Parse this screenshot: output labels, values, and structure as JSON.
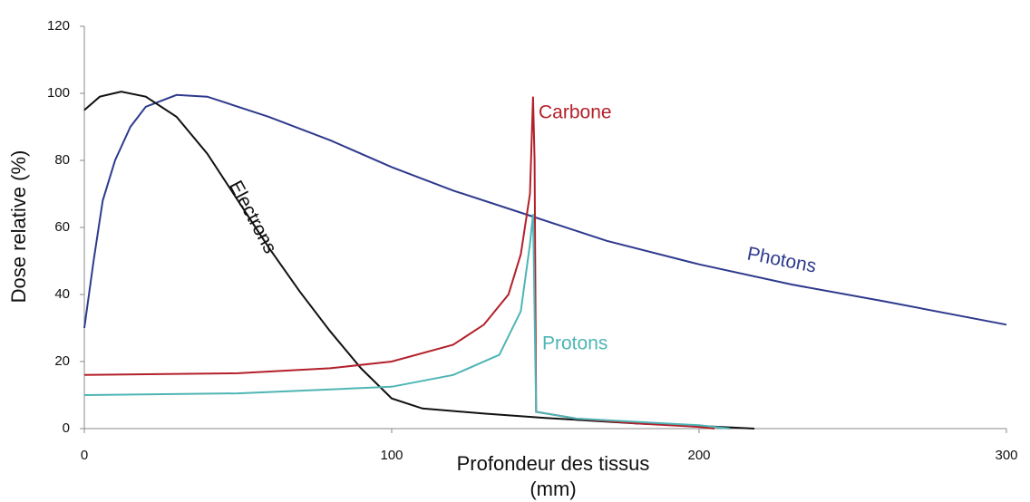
{
  "chart_data": {
    "type": "line",
    "xlabel": "Profondeur des tissus (mm)",
    "ylabel": "Dose relative (%)",
    "xlim": [
      0,
      300
    ],
    "xticks": [
      0,
      100,
      200,
      300
    ],
    "ylim": [
      0,
      120
    ],
    "yticks": [
      0,
      20,
      40,
      60,
      80,
      100,
      120
    ],
    "grid": false,
    "series": [
      {
        "name": "Photons",
        "color": "#2e3a8c",
        "x": [
          0,
          3,
          6,
          10,
          15,
          20,
          30,
          40,
          60,
          80,
          100,
          120,
          145,
          170,
          200,
          230,
          260,
          300
        ],
        "values": [
          30,
          50,
          68,
          80,
          90,
          96,
          99.5,
          99,
          93,
          86,
          78,
          71,
          63.5,
          56,
          49,
          43,
          38,
          31
        ]
      },
      {
        "name": "Electrons",
        "color": "#111111",
        "x": [
          0,
          5,
          12,
          20,
          30,
          40,
          50,
          60,
          70,
          80,
          90,
          100,
          110,
          130,
          150,
          180,
          200,
          218
        ],
        "values": [
          95,
          99,
          100.5,
          99,
          93,
          82,
          68,
          54,
          41,
          29,
          18,
          9,
          6,
          4.5,
          3.2,
          1.5,
          0.8,
          0
        ]
      },
      {
        "name": "Carbone",
        "color": "#b3202a",
        "x": [
          0,
          50,
          80,
          100,
          120,
          130,
          138,
          142,
          145,
          146,
          146.5,
          147,
          160,
          180,
          200,
          205
        ],
        "values": [
          16,
          16.5,
          18,
          20,
          25,
          31,
          40,
          52,
          70,
          99,
          80,
          5,
          3,
          1.5,
          0.5,
          0
        ]
      },
      {
        "name": "Protons",
        "color": "#4fb5b5",
        "x": [
          0,
          50,
          100,
          120,
          135,
          142,
          145,
          146,
          147,
          160,
          200,
          210
        ],
        "values": [
          10,
          10.5,
          12.5,
          16,
          22,
          35,
          55,
          64,
          5,
          3,
          1,
          0
        ]
      }
    ]
  }
}
